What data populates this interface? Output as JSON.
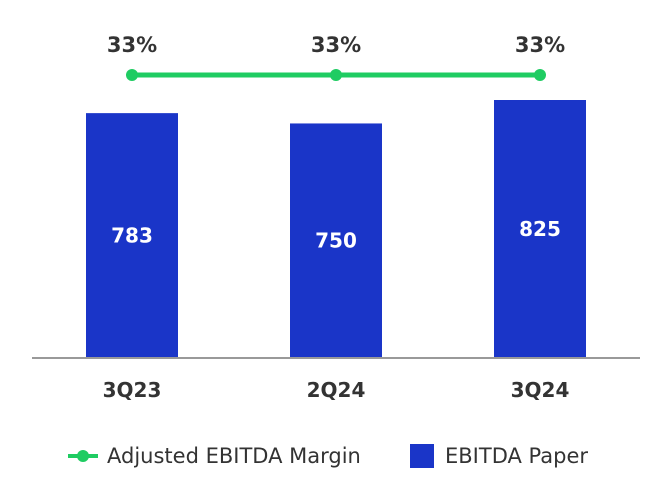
{
  "colors": {
    "bar": "#1a35c8",
    "line": "#1fcc62",
    "text": "#333333",
    "axis": "#999999"
  },
  "chart_data": {
    "type": "bar",
    "categories": [
      "3Q23",
      "2Q24",
      "3Q24"
    ],
    "series": [
      {
        "name": "EBITDA Paper",
        "type": "bar",
        "values": [
          783,
          750,
          825
        ],
        "labels": [
          "783",
          "750",
          "825"
        ]
      },
      {
        "name": "Adjusted EBITDA Margin",
        "type": "line",
        "values": [
          33,
          33,
          33
        ],
        "labels": [
          "33%",
          "33%",
          "33%"
        ]
      }
    ],
    "legend": {
      "placement": "bottom",
      "items": [
        "Adjusted EBITDA Margin",
        "EBITDA Paper"
      ]
    },
    "grid": false
  }
}
